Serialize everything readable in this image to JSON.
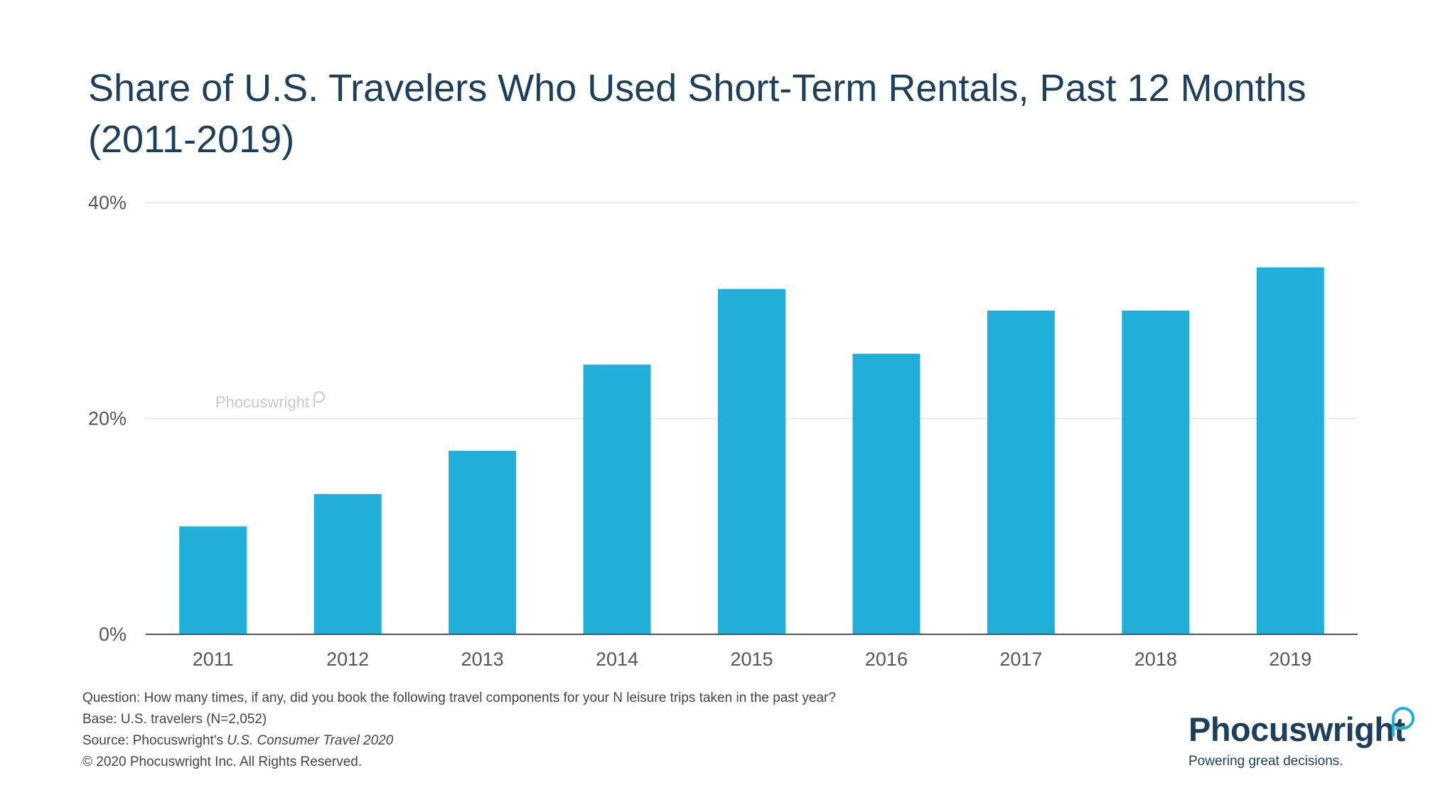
{
  "header": {
    "title": "Share of U.S. Travelers Who Used Short-Term Rentals, Past 12 Months (2011-2019)"
  },
  "chart_data": {
    "type": "bar",
    "title": "Share of U.S. Travelers Who Used Short-Term Rentals, Past 12 Months (2011-2019)",
    "categories": [
      "2011",
      "2012",
      "2013",
      "2014",
      "2015",
      "2016",
      "2017",
      "2018",
      "2019"
    ],
    "values": [
      10,
      13,
      17,
      25,
      32,
      26,
      30,
      30,
      34
    ],
    "ylim": [
      0,
      40
    ],
    "yticks": [
      0,
      20,
      40
    ],
    "ytick_labels": [
      "0%",
      "20%",
      "40%"
    ],
    "xlabel": "",
    "ylabel": "",
    "grid": true,
    "bar_color": "#21afd9"
  },
  "watermark": {
    "text": "Phocuswright"
  },
  "footnotes": {
    "question": "Question: How many times, if any, did you book the following travel components for your N leisure trips taken in the past year?",
    "base": "Base: U.S. travelers (N=2,052)",
    "source_prefix": "Source: Phocuswright's ",
    "source_title": "U.S. Consumer Travel 2020",
    "copyright": "© 2020  Phocuswright Inc. All Rights Reserved."
  },
  "logo": {
    "name": "Phocuswright",
    "tagline": "Powering great decisions."
  },
  "colors": {
    "title": "#1c3f5e",
    "bar": "#21afd9",
    "logo_accent": "#21afd9"
  }
}
